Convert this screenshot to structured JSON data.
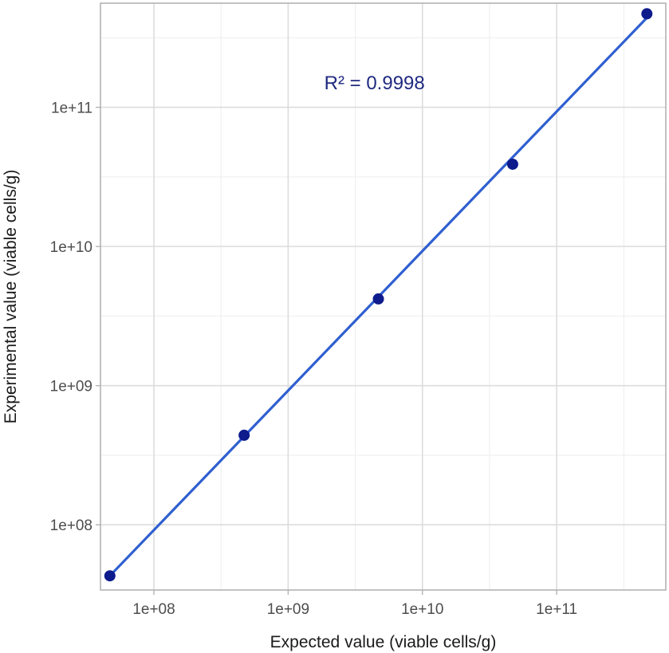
{
  "chart_data": {
    "type": "scatter",
    "xlabel": "Expected value (viable cells/g)",
    "ylabel": "Experimental value (viable cells/g)",
    "x_scale": "log10",
    "y_scale": "log10",
    "xlim": [
      40000000,
      650000000000
    ],
    "ylim": [
      34000000,
      560000000000
    ],
    "x_ticks": [
      100000000,
      1000000000,
      10000000000,
      100000000000
    ],
    "x_tick_labels": [
      "1e+08",
      "1e+09",
      "1e+10",
      "1e+11"
    ],
    "y_ticks": [
      100000000,
      1000000000,
      10000000000,
      100000000000
    ],
    "y_tick_labels": [
      "1e+08",
      "1e+09",
      "1e+10",
      "1e+11"
    ],
    "grid": true,
    "points": {
      "x": [
        47000000,
        470000000,
        4700000000,
        47000000000,
        470000000000
      ],
      "y": [
        43000000,
        440000000,
        4200000000,
        39000000000,
        470000000000
      ],
      "color": "#0d1b8c"
    },
    "fit_line": {
      "x": [
        47000000,
        470000000000
      ],
      "y": [
        43000000,
        440000000000
      ],
      "color": "#2f5fd0"
    },
    "annotation": {
      "text": "R² = 0.9998",
      "x": 4400000000,
      "y": 150000000000
    }
  }
}
